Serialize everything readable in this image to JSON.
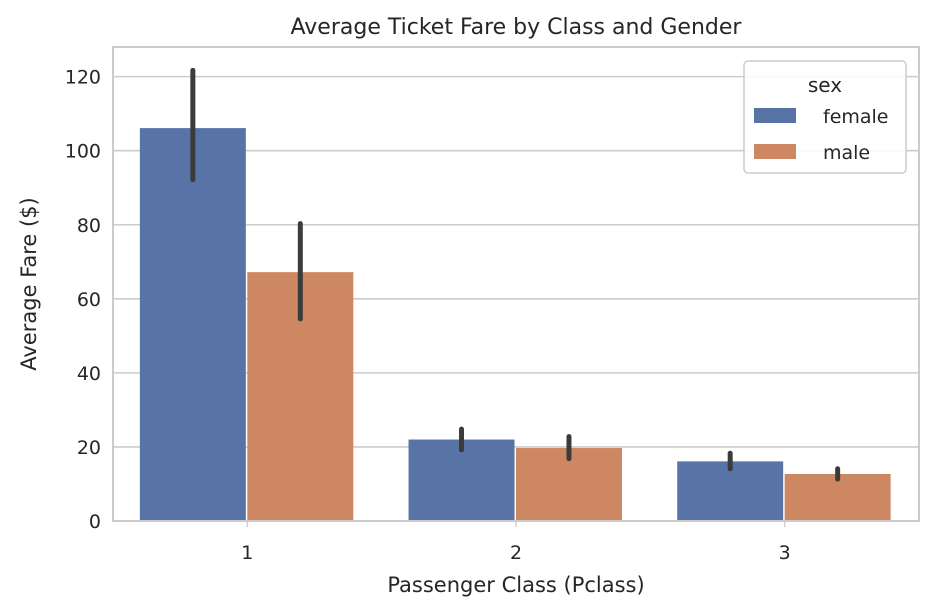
{
  "chart_data": {
    "type": "bar",
    "title": "Average Ticket Fare by Class and Gender",
    "xlabel": "Passenger Class (Pclass)",
    "ylabel": "Average Fare ($)",
    "categories": [
      "1",
      "2",
      "3"
    ],
    "ylim": [
      0,
      128
    ],
    "yticks": [
      0,
      20,
      40,
      60,
      80,
      100,
      120
    ],
    "grid": true,
    "legend": {
      "title": "sex",
      "placement": "top-right"
    },
    "series": [
      {
        "name": "female",
        "color": "#5874a6",
        "values": [
          106.1,
          22.0,
          16.1
        ],
        "error_low": [
          92.2,
          19.2,
          14.1
        ],
        "error_high": [
          121.7,
          24.8,
          18.3
        ]
      },
      {
        "name": "male",
        "color": "#cd8762",
        "values": [
          67.2,
          19.7,
          12.7
        ],
        "error_low": [
          54.6,
          16.8,
          11.3
        ],
        "error_high": [
          80.3,
          22.8,
          14.1
        ]
      }
    ]
  }
}
